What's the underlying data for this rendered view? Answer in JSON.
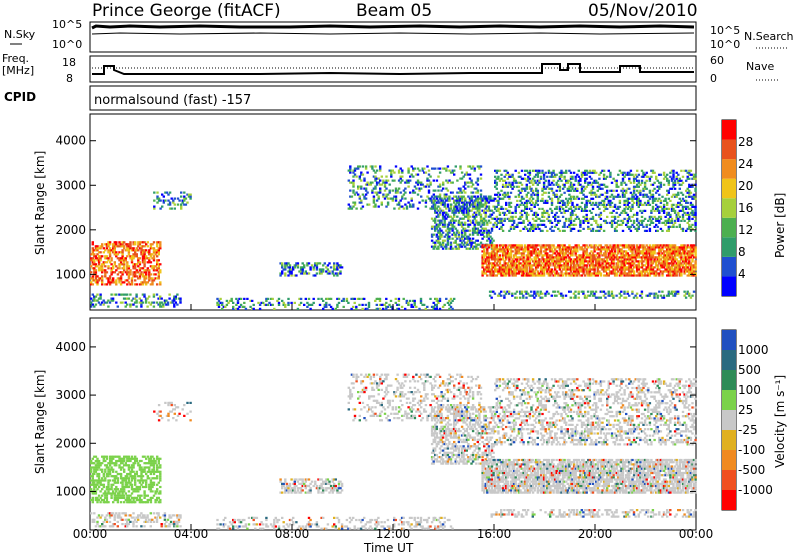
{
  "header": {
    "station": "Prince George (fitACF)",
    "beam": "Beam 05",
    "date": "05/Nov/2010"
  },
  "left_labels": {
    "nsky": "N.Sky",
    "freq": "Freq.",
    "freq_unit": "[MHz]",
    "cpid": "CPID"
  },
  "right_labels": {
    "nsearch": "N.Search",
    "nave": "Nave"
  },
  "cpid_text": "normalsound (fast) -157",
  "noise_axis": {
    "left_ticks": [
      "10^5",
      "10^0"
    ],
    "right_ticks": [
      "10^5",
      "10^0"
    ]
  },
  "freq_axis": {
    "left_ticks": [
      "18",
      "8"
    ],
    "right_ticks": [
      "60",
      "0"
    ]
  },
  "colors": {
    "power_scale": [
      "#0000ff",
      "#1f4fd0",
      "#2f9c6a",
      "#4caf50",
      "#a6d03c",
      "#f0c419",
      "#f08c1e",
      "#e8521d",
      "#ff0000"
    ],
    "velocity_scale": [
      "#2050c0",
      "#2a6a80",
      "#2e8b57",
      "#7bd24a",
      "#c8c8c8",
      "#e0b020",
      "#f08a20",
      "#f05020",
      "#ff0000"
    ]
  },
  "chart_data": [
    {
      "type": "heatmap",
      "name": "power",
      "xlabel": "",
      "ylabel": "Slant Range [km]",
      "ylim": [
        200,
        4600
      ],
      "yticks": [
        "4000",
        "3000",
        "2000",
        "1000"
      ],
      "xticks": [
        "00:00",
        "04:00",
        "08:00",
        "12:00",
        "16:00",
        "20:00",
        "00:00"
      ],
      "colorbar": {
        "label": "Power [dB]",
        "ticks": [
          "28",
          "24",
          "20",
          "16",
          "12",
          "8",
          "4"
        ]
      }
    },
    {
      "type": "heatmap",
      "name": "velocity",
      "xlabel": "Time UT",
      "ylabel": "Slant Range [km]",
      "ylim": [
        200,
        4600
      ],
      "yticks": [
        "4000",
        "3000",
        "2000",
        "1000"
      ],
      "xticks": [
        "00:00",
        "04:00",
        "08:00",
        "12:00",
        "16:00",
        "20:00",
        "00:00"
      ],
      "colorbar": {
        "label": "Velocity [m s⁻¹]",
        "ticks": [
          "1000",
          "500",
          "100",
          "25",
          "-25",
          "-100",
          "-500",
          "-1000"
        ]
      }
    }
  ]
}
